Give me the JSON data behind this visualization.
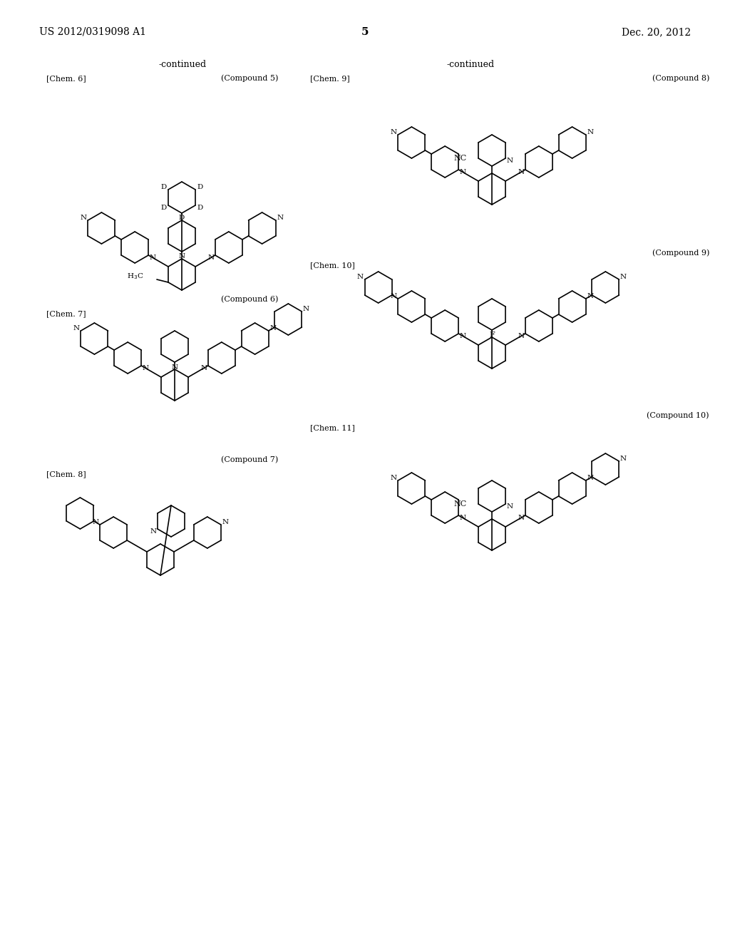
{
  "background_color": "#ffffff",
  "page_number": "5",
  "header_left": "US 2012/0319098 A1",
  "header_right": "Dec. 20, 2012",
  "continued_left": "-continued",
  "continued_right": "-continued",
  "labels": {
    "chem6": "[Chem. 6]",
    "chem7": "[Chem. 7]",
    "chem8": "[Chem. 8]",
    "chem9": "[Chem. 9]",
    "chem10": "[Chem. 10]",
    "chem11": "[Chem. 11]",
    "compound5": "(Compound 5)",
    "compound6": "(Compound 6)",
    "compound7": "(Compound 7)",
    "compound8": "(Compound 8)",
    "compound9": "(Compound 9)",
    "compound10": "(Compound 10)"
  }
}
